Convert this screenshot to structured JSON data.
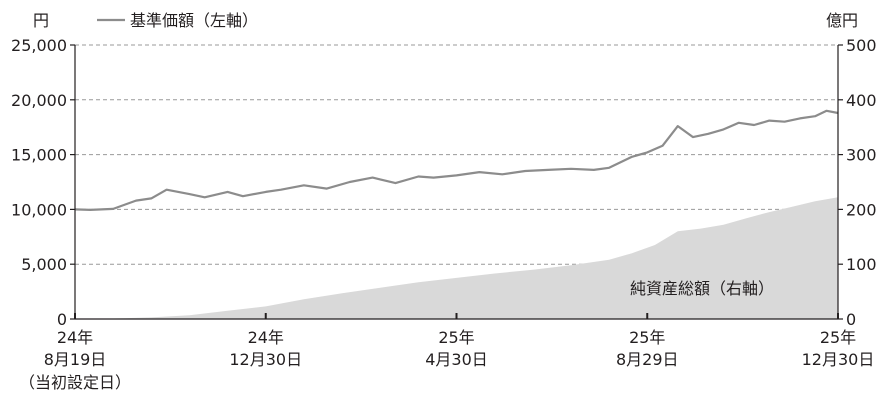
{
  "chart_data": {
    "type": "line",
    "left_axis": {
      "unit_label": "円",
      "ylim": [
        0,
        25000
      ],
      "ticks": [
        "25,000",
        "20,000",
        "15,000",
        "10,000",
        "5,000",
        "0"
      ]
    },
    "right_axis": {
      "unit_label": "億円",
      "ylim": [
        0,
        500
      ],
      "ticks": [
        "500",
        "400",
        "300",
        "200",
        "100",
        "0"
      ]
    },
    "x_ticks": [
      {
        "top": "24年",
        "bottom": "8月19日",
        "note": "（当初設定日）"
      },
      {
        "top": "24年",
        "bottom": "12月30日"
      },
      {
        "top": "25年",
        "bottom": "4月30日"
      },
      {
        "top": "25年",
        "bottom": "8月29日"
      },
      {
        "top": "25年",
        "bottom": "12月30日"
      }
    ],
    "grid": "horizontal dashed",
    "legend": {
      "text": "基準価額（左軸）",
      "placement": "top-left"
    },
    "area_label": "純資産総額（右軸）",
    "colors": {
      "nav_line": "#8c8c8c",
      "assets_area": "#d9d9d9",
      "axis": "#231f20",
      "grid": "#999999"
    },
    "series": [
      {
        "name": "基準価額（左軸）",
        "axis": "left",
        "kind": "line",
        "x": [
          0.0,
          0.02,
          0.05,
          0.08,
          0.1,
          0.12,
          0.15,
          0.17,
          0.2,
          0.22,
          0.25,
          0.27,
          0.3,
          0.33,
          0.36,
          0.39,
          0.42,
          0.45,
          0.47,
          0.5,
          0.53,
          0.56,
          0.59,
          0.62,
          0.65,
          0.68,
          0.7,
          0.73,
          0.75,
          0.77,
          0.79,
          0.81,
          0.83,
          0.85,
          0.87,
          0.89,
          0.91,
          0.93,
          0.95,
          0.97,
          0.985,
          1.0
        ],
        "values": [
          10000,
          9950,
          10050,
          10800,
          11000,
          11800,
          11400,
          11100,
          11600,
          11200,
          11600,
          11800,
          12200,
          11900,
          12500,
          12900,
          12400,
          13000,
          12900,
          13100,
          13400,
          13200,
          13500,
          13600,
          13700,
          13600,
          13800,
          14800,
          15200,
          15800,
          17600,
          16600,
          16900,
          17300,
          17900,
          17700,
          18100,
          18000,
          18300,
          18500,
          19000,
          18800
        ]
      },
      {
        "name": "純資産総額（右軸）",
        "axis": "right",
        "kind": "area",
        "x": [
          0.0,
          0.05,
          0.1,
          0.15,
          0.2,
          0.25,
          0.3,
          0.35,
          0.4,
          0.45,
          0.5,
          0.55,
          0.6,
          0.65,
          0.7,
          0.73,
          0.76,
          0.79,
          0.82,
          0.85,
          0.88,
          0.91,
          0.94,
          0.97,
          1.0
        ],
        "values": [
          0,
          1,
          3,
          7,
          15,
          23,
          36,
          47,
          57,
          67,
          75,
          83,
          90,
          98,
          108,
          120,
          135,
          160,
          165,
          172,
          184,
          195,
          205,
          215,
          222
        ]
      }
    ]
  }
}
